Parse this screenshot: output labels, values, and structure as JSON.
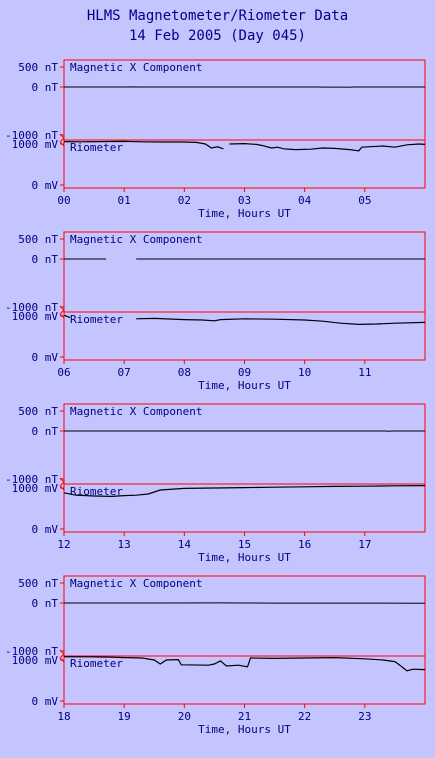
{
  "page": {
    "title": "HLMS Magnetometer/Riometer Data",
    "subtitle": "14 Feb 2005 (Day 045)"
  },
  "colors": {
    "background": "#c4c4ff",
    "frame": "#ff0000",
    "trace": "#000000",
    "text": "#000080"
  },
  "chart_data": [
    {
      "type": "line",
      "x_range": [
        0,
        6
      ],
      "x_ticks": [
        "00",
        "01",
        "02",
        "03",
        "04",
        "05"
      ],
      "xlabel": "Time, Hours UT",
      "mag": {
        "label": "Magnetic X Component",
        "ylim": [
          -1000,
          500
        ],
        "y_ticks": [
          "500 nT",
          "0 nT",
          "-1000 nT"
        ],
        "segments": [
          [
            [
              0.0,
              0
            ],
            [
              1.05,
              0
            ],
            [
              1.1,
              5
            ],
            [
              1.25,
              0
            ],
            [
              4.25,
              0
            ],
            [
              4.3,
              -5
            ],
            [
              4.7,
              -5
            ],
            [
              4.75,
              -10
            ],
            [
              4.8,
              0
            ],
            [
              6.0,
              0
            ]
          ]
        ]
      },
      "rio": {
        "label": "Riometer",
        "ylim": [
          0,
          1200
        ],
        "y_ticks": [
          "1000 mV",
          "0 mV"
        ],
        "segments": [
          [
            [
              0.0,
              1060
            ],
            [
              0.3,
              1055
            ],
            [
              0.6,
              1060
            ],
            [
              1.0,
              1065
            ],
            [
              1.3,
              1055
            ],
            [
              1.6,
              1050
            ],
            [
              2.0,
              1050
            ],
            [
              2.2,
              1040
            ],
            [
              2.35,
              1000
            ],
            [
              2.45,
              900
            ],
            [
              2.55,
              930
            ],
            [
              2.65,
              880
            ]
          ],
          [
            [
              2.75,
              1000
            ],
            [
              3.0,
              1010
            ],
            [
              3.2,
              990
            ],
            [
              3.3,
              960
            ],
            [
              3.45,
              900
            ],
            [
              3.55,
              920
            ],
            [
              3.65,
              880
            ],
            [
              3.85,
              860
            ],
            [
              4.1,
              870
            ],
            [
              4.3,
              900
            ],
            [
              4.5,
              890
            ],
            [
              4.75,
              860
            ],
            [
              4.9,
              830
            ],
            [
              4.95,
              920
            ],
            [
              5.3,
              950
            ],
            [
              5.5,
              920
            ],
            [
              5.7,
              980
            ],
            [
              5.9,
              1000
            ],
            [
              6.0,
              990
            ]
          ]
        ]
      }
    },
    {
      "type": "line",
      "x_range": [
        6,
        12
      ],
      "x_ticks": [
        "06",
        "07",
        "08",
        "09",
        "10",
        "11"
      ],
      "xlabel": "Time, Hours UT",
      "mag": {
        "label": "Magnetic X Component",
        "ylim": [
          -1000,
          500
        ],
        "y_ticks": [
          "500 nT",
          "0 nT",
          "-1000 nT"
        ],
        "segments": [
          [
            [
              6.0,
              0
            ],
            [
              6.7,
              0
            ]
          ],
          [
            [
              7.2,
              0
            ],
            [
              12.0,
              0
            ]
          ]
        ]
      },
      "rio": {
        "label": "Riometer",
        "ylim": [
          0,
          1200
        ],
        "y_ticks": [
          "1000 mV",
          "0 mV"
        ],
        "segments": [
          [
            [
              6.0,
              1020
            ],
            [
              6.1,
              960
            ]
          ],
          [
            [
              7.2,
              930
            ],
            [
              7.5,
              940
            ],
            [
              8.0,
              910
            ],
            [
              8.3,
              900
            ],
            [
              8.5,
              880
            ],
            [
              8.6,
              910
            ],
            [
              9.0,
              930
            ],
            [
              9.5,
              920
            ],
            [
              10.0,
              900
            ],
            [
              10.3,
              870
            ],
            [
              10.6,
              820
            ],
            [
              10.9,
              790
            ],
            [
              11.2,
              800
            ],
            [
              11.5,
              820
            ],
            [
              12.0,
              840
            ]
          ]
        ]
      }
    },
    {
      "type": "line",
      "x_range": [
        12,
        18
      ],
      "x_ticks": [
        "12",
        "13",
        "14",
        "15",
        "16",
        "17"
      ],
      "xlabel": "Time, Hours UT",
      "mag": {
        "label": "Magnetic X Component",
        "ylim": [
          -1000,
          500
        ],
        "y_ticks": [
          "500 nT",
          "0 nT",
          "-1000 nT"
        ],
        "segments": [
          [
            [
              12.0,
              0
            ],
            [
              17.35,
              0
            ],
            [
              17.4,
              -10
            ],
            [
              17.45,
              0
            ],
            [
              18.0,
              0
            ]
          ]
        ]
      },
      "rio": {
        "label": "Riometer",
        "ylim": [
          0,
          1200
        ],
        "y_ticks": [
          "1000 mV",
          "0 mV"
        ],
        "segments": [
          [
            [
              12.0,
              880
            ],
            [
              12.2,
              820
            ],
            [
              12.5,
              800
            ],
            [
              12.8,
              790
            ],
            [
              13.0,
              810
            ],
            [
              13.2,
              820
            ],
            [
              13.4,
              850
            ],
            [
              13.6,
              950
            ],
            [
              14.0,
              990
            ],
            [
              14.5,
              1000
            ],
            [
              15.0,
              1010
            ],
            [
              15.5,
              1020
            ],
            [
              16.0,
              1030
            ],
            [
              16.5,
              1040
            ],
            [
              17.0,
              1045
            ],
            [
              17.5,
              1055
            ],
            [
              18.0,
              1060
            ]
          ]
        ]
      }
    },
    {
      "type": "line",
      "x_range": [
        18,
        24
      ],
      "x_ticks": [
        "18",
        "19",
        "20",
        "21",
        "22",
        "23"
      ],
      "xlabel": "Time, Hours UT",
      "mag": {
        "label": "Magnetic X Component",
        "ylim": [
          -1000,
          500
        ],
        "y_ticks": [
          "500 nT",
          "0 nT",
          "-1000 nT"
        ],
        "segments": [
          [
            [
              18.0,
              0
            ],
            [
              19.5,
              0
            ],
            [
              20.6,
              5
            ],
            [
              21.0,
              0
            ],
            [
              21.5,
              -5
            ],
            [
              22.0,
              -5
            ],
            [
              24.0,
              -10
            ]
          ]
        ]
      },
      "rio": {
        "label": "Riometer",
        "ylim": [
          0,
          1200
        ],
        "y_ticks": [
          "1000 mV",
          "0 mV"
        ],
        "segments": [
          [
            [
              18.0,
              1080
            ],
            [
              18.4,
              1080
            ],
            [
              18.8,
              1070
            ],
            [
              19.0,
              1060
            ],
            [
              19.3,
              1050
            ],
            [
              19.5,
              1000
            ],
            [
              19.6,
              900
            ],
            [
              19.7,
              1000
            ],
            [
              19.9,
              1010
            ],
            [
              19.95,
              880
            ],
            [
              20.4,
              870
            ],
            [
              20.5,
              900
            ],
            [
              20.6,
              980
            ],
            [
              20.7,
              850
            ],
            [
              20.9,
              870
            ],
            [
              21.05,
              830
            ],
            [
              21.1,
              1050
            ],
            [
              21.5,
              1040
            ],
            [
              22.0,
              1050
            ],
            [
              22.5,
              1060
            ],
            [
              23.0,
              1030
            ],
            [
              23.3,
              1000
            ],
            [
              23.5,
              960
            ],
            [
              23.6,
              850
            ],
            [
              23.7,
              730
            ],
            [
              23.8,
              770
            ],
            [
              24.0,
              760
            ]
          ]
        ]
      }
    }
  ]
}
